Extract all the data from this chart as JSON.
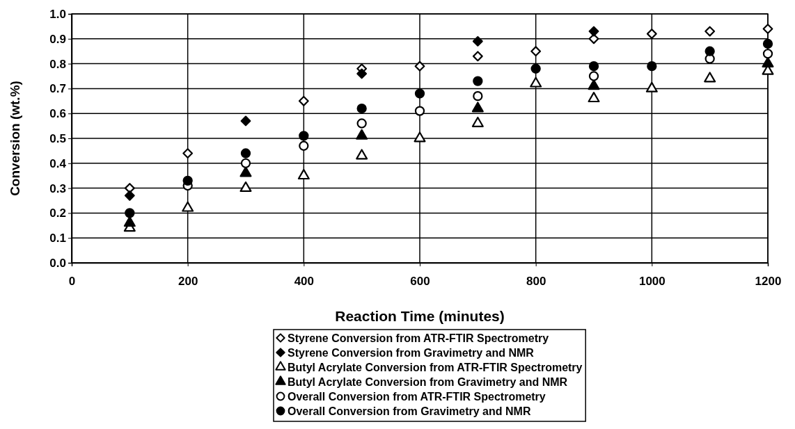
{
  "chart_data": {
    "type": "scatter",
    "xlabel": "Reaction Time (minutes)",
    "ylabel": "Conversion (wt.%)",
    "x": [
      100,
      200,
      300,
      400,
      500,
      600,
      700,
      800,
      900,
      1000,
      1100,
      1200
    ],
    "xlim": [
      0,
      1200
    ],
    "xticks": [
      0,
      200,
      400,
      600,
      800,
      1000,
      1200
    ],
    "ylim": [
      0,
      1
    ],
    "yticks": [
      {
        "value": 0,
        "label": "0.0"
      },
      {
        "value": 0.1,
        "label": "0.1"
      },
      {
        "value": 0.2,
        "label": "0.2"
      },
      {
        "value": 0.3,
        "label": "0.3"
      },
      {
        "value": 0.4,
        "label": "0.4"
      },
      {
        "value": 0.5,
        "label": "0.5"
      },
      {
        "value": 0.6,
        "label": "0.6"
      },
      {
        "value": 0.7,
        "label": "0.7"
      },
      {
        "value": 0.8,
        "label": "0.8"
      },
      {
        "value": 0.9,
        "label": "0.9"
      },
      {
        "value": 1,
        "label": "1.0"
      }
    ],
    "grid": true,
    "legend": "bottom",
    "series": [
      {
        "name": "Styrene Conversion from ATR-FTIR Spectrometry",
        "color": "#ffffff",
        "marker": "diamond",
        "values": [
          0.3,
          0.44,
          null,
          0.65,
          0.78,
          0.79,
          0.83,
          0.85,
          0.9,
          0.92,
          0.93,
          0.94
        ]
      },
      {
        "name": "Styrene Conversion from Gravimetry and NMR",
        "color": "#000000",
        "marker": "diamond",
        "values": [
          0.27,
          null,
          0.57,
          null,
          0.76,
          null,
          0.89,
          null,
          0.93,
          null,
          null,
          null
        ]
      },
      {
        "name": "Butyl Acrylate Conversion from ATR-FTIR Spectrometry",
        "color": "#ffffff",
        "marker": "triangle",
        "values": [
          0.14,
          0.22,
          0.3,
          0.35,
          0.43,
          0.5,
          0.56,
          0.72,
          0.66,
          0.7,
          0.74,
          0.77
        ]
      },
      {
        "name": "Butyl Acrylate Conversion from Gravimetry and NMR",
        "color": "#000000",
        "marker": "triangle",
        "values": [
          0.16,
          null,
          0.36,
          null,
          0.51,
          null,
          0.62,
          null,
          0.71,
          null,
          null,
          0.8
        ]
      },
      {
        "name": "Overall Conversion from ATR-FTIR Spectrometry",
        "color": "#ffffff",
        "marker": "circle",
        "values": [
          null,
          0.31,
          0.4,
          0.47,
          0.56,
          0.61,
          0.67,
          null,
          0.75,
          null,
          0.82,
          0.84
        ]
      },
      {
        "name": "Overall Conversion from Gravimetry and NMR",
        "color": "#000000",
        "marker": "circle",
        "values": [
          0.2,
          0.33,
          0.44,
          0.51,
          0.62,
          0.68,
          0.73,
          0.78,
          0.79,
          0.79,
          0.85,
          0.88
        ]
      }
    ]
  }
}
